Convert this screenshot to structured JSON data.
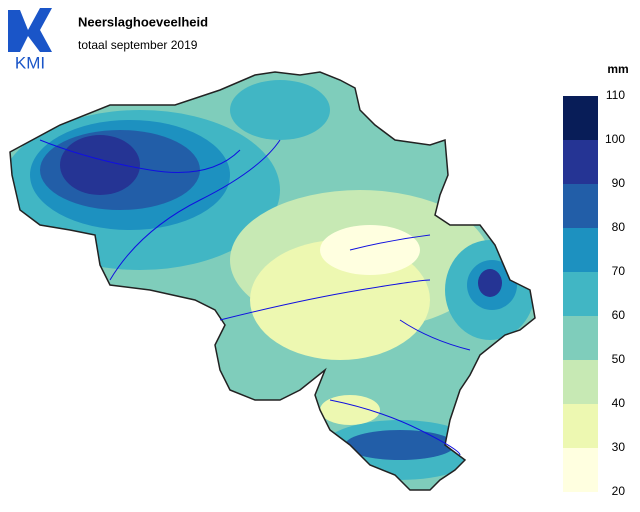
{
  "header": {
    "logo": "KMI",
    "title": "Neerslaghoeveelheid",
    "subtitle": "totaal september 2019"
  },
  "legend": {
    "unit": "mm",
    "ticks": [
      20,
      30,
      40,
      50,
      60,
      70,
      80,
      90,
      100,
      110
    ],
    "colors": [
      "#ffffe0",
      "#edf8b1",
      "#c7e9b4",
      "#7fcdbb",
      "#41b6c4",
      "#1d91c0",
      "#225ea8",
      "#253494",
      "#081d58"
    ]
  }
}
